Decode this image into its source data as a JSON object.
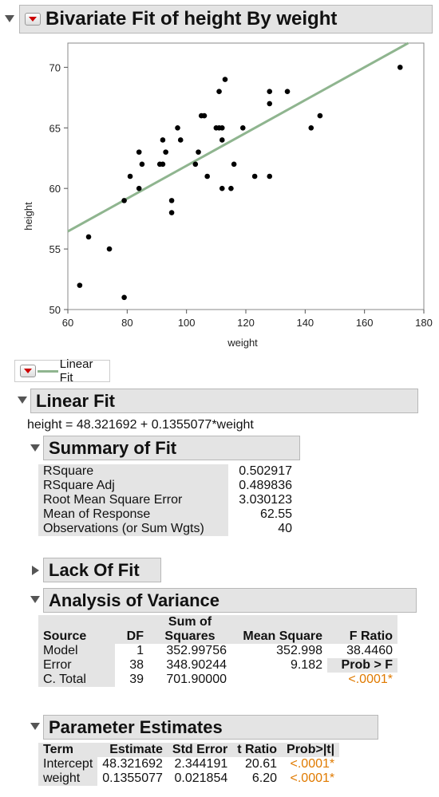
{
  "report": {
    "title": "Bivariate Fit of height By weight",
    "legend_label": "Linear Fit"
  },
  "chart_data": {
    "type": "scatter",
    "xlabel": "weight",
    "ylabel": "height",
    "xlim": [
      60,
      180
    ],
    "ylim": [
      50,
      72
    ],
    "xticks": [
      "60",
      "80",
      "100",
      "120",
      "140",
      "160",
      "180"
    ],
    "yticks": [
      "50",
      "55",
      "60",
      "65",
      "70"
    ],
    "grid": false,
    "points": [
      [
        64,
        52
      ],
      [
        67,
        56
      ],
      [
        74,
        55
      ],
      [
        79,
        51
      ],
      [
        79,
        59
      ],
      [
        81,
        61
      ],
      [
        84,
        60
      ],
      [
        84,
        63
      ],
      [
        85,
        62
      ],
      [
        91,
        62
      ],
      [
        92,
        62
      ],
      [
        92,
        64
      ],
      [
        93,
        63
      ],
      [
        95,
        58
      ],
      [
        95,
        59
      ],
      [
        97,
        65
      ],
      [
        98,
        64
      ],
      [
        103,
        62
      ],
      [
        104,
        63
      ],
      [
        105,
        66
      ],
      [
        106,
        66
      ],
      [
        107,
        61
      ],
      [
        110,
        65
      ],
      [
        111,
        68
      ],
      [
        111,
        65
      ],
      [
        112,
        60
      ],
      [
        112,
        64
      ],
      [
        112,
        65
      ],
      [
        113,
        69
      ],
      [
        115,
        60
      ],
      [
        116,
        62
      ],
      [
        119,
        65
      ],
      [
        123,
        61
      ],
      [
        128,
        68
      ],
      [
        128,
        67
      ],
      [
        128,
        61
      ],
      [
        134,
        68
      ],
      [
        142,
        65
      ],
      [
        145,
        66
      ],
      [
        172,
        70
      ]
    ],
    "fit_line": {
      "intercept": 48.321692,
      "slope": 0.1355077,
      "color": "#8fb58f"
    }
  },
  "linear_fit": {
    "title": "Linear Fit",
    "equation": "height = 48.321692 + 0.1355077*weight"
  },
  "summary_of_fit": {
    "title": "Summary of Fit",
    "rows": [
      {
        "label": "RSquare",
        "value": "0.502917"
      },
      {
        "label": "RSquare Adj",
        "value": "0.489836"
      },
      {
        "label": "Root Mean Square Error",
        "value": "3.030123"
      },
      {
        "label": "Mean of Response",
        "value": "62.55"
      },
      {
        "label": "Observations (or Sum Wgts)",
        "value": "40"
      }
    ]
  },
  "lack_of_fit": {
    "title": "Lack Of Fit"
  },
  "anova": {
    "title": "Analysis of Variance",
    "headers": {
      "source": "Source",
      "df": "DF",
      "ss_top": "Sum of",
      "ss_bottom": "Squares",
      "ms": "Mean Square",
      "f": "F Ratio"
    },
    "rows": [
      {
        "source": "Model",
        "df": "1",
        "ss": "352.99756",
        "ms": "352.998",
        "f": "38.4460"
      },
      {
        "source": "Error",
        "df": "38",
        "ss": "348.90244",
        "ms": "9.182",
        "f": "Prob > F"
      },
      {
        "source": "C. Total",
        "df": "39",
        "ss": "701.90000",
        "ms": "",
        "f": "<.0001*"
      }
    ]
  },
  "parameter_estimates": {
    "title": "Parameter Estimates",
    "headers": {
      "term": "Term",
      "estimate": "Estimate",
      "stderr": "Std Error",
      "t": "t Ratio",
      "p": "Prob>|t|"
    },
    "rows": [
      {
        "term": "Intercept",
        "estimate": "48.321692",
        "stderr": "2.344191",
        "t": "20.61",
        "p": "<.0001*"
      },
      {
        "term": "weight",
        "estimate": "0.1355077",
        "stderr": "0.021854",
        "t": "6.20",
        "p": "<.0001*"
      }
    ]
  }
}
